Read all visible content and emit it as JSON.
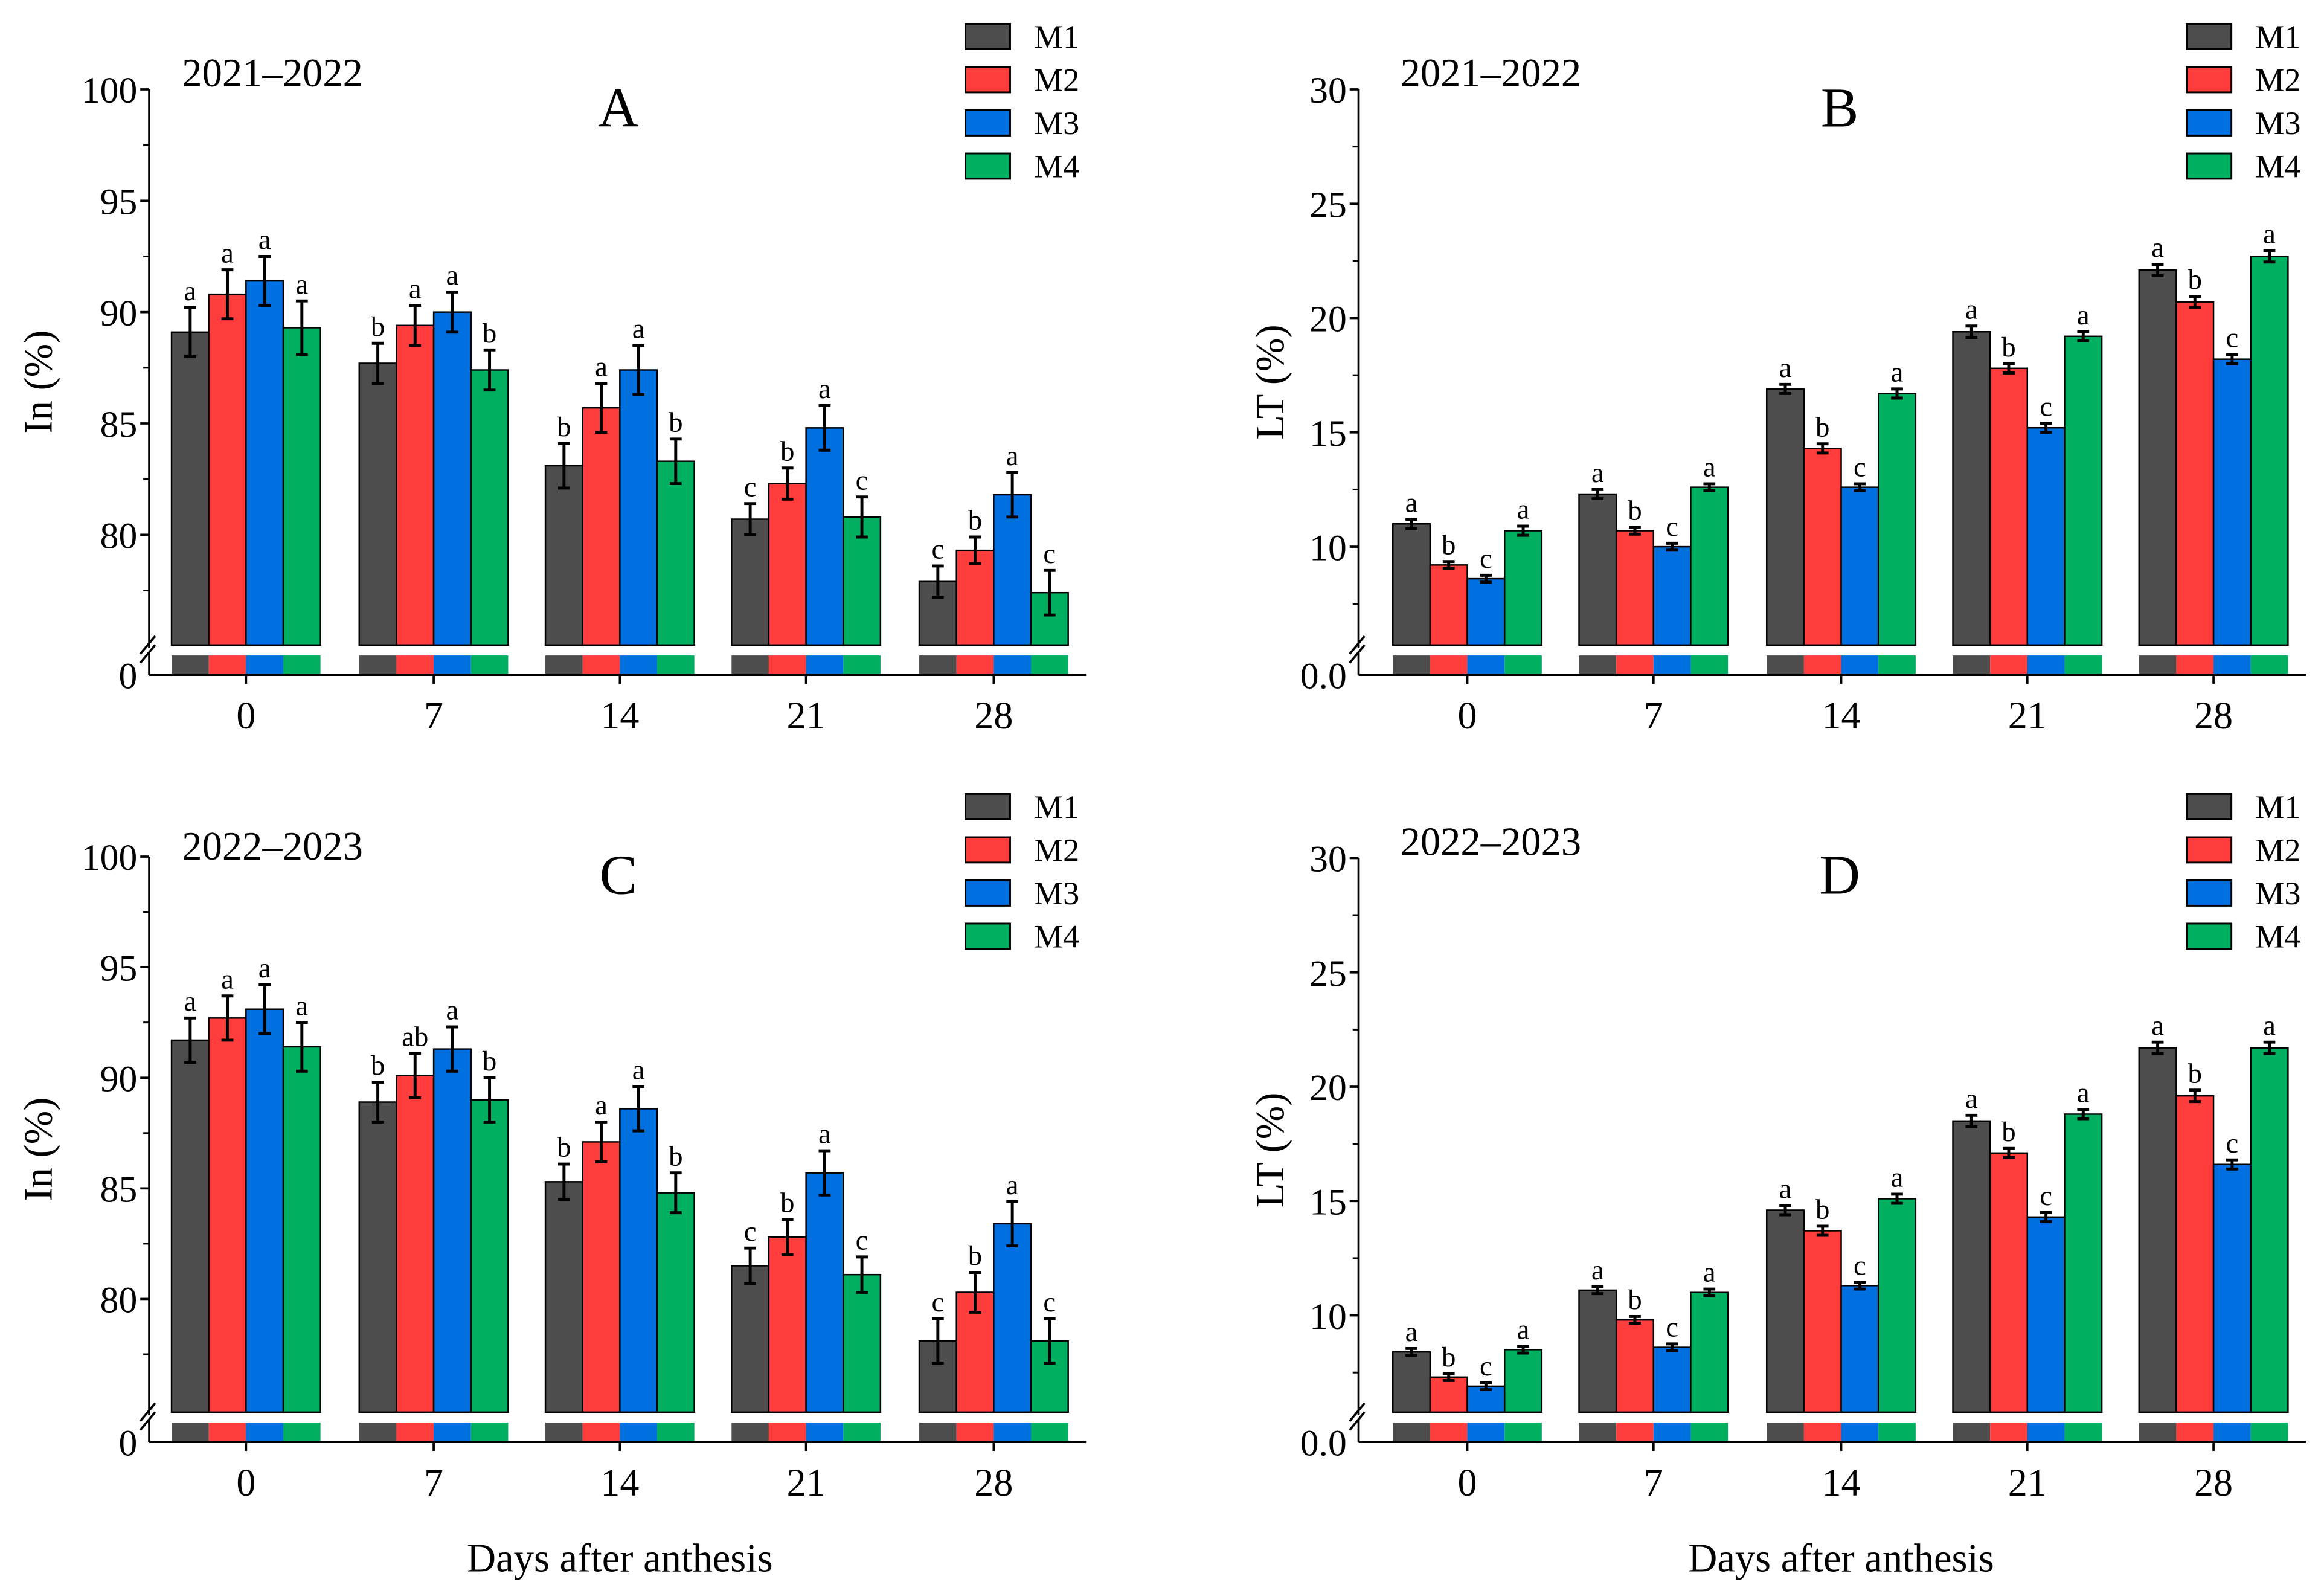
{
  "colors": {
    "M1": "#4d4d4d",
    "M2": "#ff3d3d",
    "M3": "#0070e0",
    "M4": "#00b060"
  },
  "chart_data": [
    {
      "type": "bar",
      "panel": "A",
      "period": "2021–2022",
      "xlabel": "",
      "ylabel": "In (%)",
      "categories": [
        "0",
        "7",
        "14",
        "21",
        "28"
      ],
      "ylim": [
        75,
        100
      ],
      "axis_break": true,
      "yticks": [
        "100",
        "95",
        "90",
        "85",
        "80"
      ],
      "ybottom_label": "0",
      "legend": [
        "M1",
        "M2",
        "M3",
        "M4"
      ],
      "legend_position": "top-right",
      "series": [
        {
          "name": "M1",
          "values": [
            89.1,
            87.7,
            83.1,
            80.7,
            77.9
          ],
          "errors": [
            1.1,
            0.9,
            1.0,
            0.7,
            0.7
          ],
          "letters": [
            "a",
            "b",
            "b",
            "c",
            "c"
          ]
        },
        {
          "name": "M2",
          "values": [
            90.8,
            89.4,
            85.7,
            82.3,
            79.3
          ],
          "errors": [
            1.1,
            0.9,
            1.1,
            0.7,
            0.6
          ],
          "letters": [
            "a",
            "a",
            "a",
            "b",
            "b"
          ]
        },
        {
          "name": "M3",
          "values": [
            91.4,
            90.0,
            87.4,
            84.8,
            81.8
          ],
          "errors": [
            1.1,
            0.9,
            1.1,
            1.0,
            1.0
          ],
          "letters": [
            "a",
            "a",
            "a",
            "a",
            "a"
          ]
        },
        {
          "name": "M4",
          "values": [
            89.3,
            87.4,
            83.3,
            80.8,
            77.4
          ],
          "errors": [
            1.2,
            0.9,
            1.0,
            0.9,
            1.0
          ],
          "letters": [
            "a",
            "b",
            "b",
            "c",
            "c"
          ]
        }
      ]
    },
    {
      "type": "bar",
      "panel": "B",
      "period": "2021–2022",
      "xlabel": "",
      "ylabel": "LT (%)",
      "categories": [
        "0",
        "7",
        "14",
        "21",
        "28"
      ],
      "ylim": [
        5,
        30
      ],
      "axis_break": true,
      "yticks": [
        "30",
        "25",
        "20",
        "15",
        "10"
      ],
      "ybottom_label": "0.0",
      "legend": [
        "M1",
        "M2",
        "M3",
        "M4"
      ],
      "legend_position": "top-right",
      "series": [
        {
          "name": "M1",
          "values": [
            11.0,
            12.3,
            16.9,
            19.4,
            22.1
          ],
          "errors": [
            0.2,
            0.2,
            0.2,
            0.25,
            0.25
          ],
          "letters": [
            "a",
            "a",
            "a",
            "a",
            "a"
          ]
        },
        {
          "name": "M2",
          "values": [
            9.2,
            10.7,
            14.3,
            17.8,
            20.7
          ],
          "errors": [
            0.15,
            0.15,
            0.2,
            0.2,
            0.25
          ],
          "letters": [
            "b",
            "b",
            "b",
            "b",
            "b"
          ]
        },
        {
          "name": "M3",
          "values": [
            8.6,
            10.0,
            12.6,
            15.2,
            18.2
          ],
          "errors": [
            0.15,
            0.15,
            0.15,
            0.2,
            0.2
          ],
          "letters": [
            "c",
            "c",
            "c",
            "c",
            "c"
          ]
        },
        {
          "name": "M4",
          "values": [
            10.7,
            12.6,
            16.7,
            19.2,
            22.7
          ],
          "errors": [
            0.2,
            0.15,
            0.2,
            0.2,
            0.25
          ],
          "letters": [
            "a",
            "a",
            "a",
            "a",
            "a"
          ]
        }
      ]
    },
    {
      "type": "bar",
      "panel": "C",
      "period": "2022–2023",
      "xlabel": "Days after anthesis",
      "ylabel": "In (%)",
      "categories": [
        "0",
        "7",
        "14",
        "21",
        "28"
      ],
      "ylim": [
        75,
        100
      ],
      "axis_break": true,
      "yticks": [
        "100",
        "95",
        "90",
        "85",
        "80"
      ],
      "ybottom_label": "0",
      "legend": [
        "M1",
        "M2",
        "M3",
        "M4"
      ],
      "legend_position": "top-right",
      "series": [
        {
          "name": "M1",
          "values": [
            91.7,
            88.9,
            85.3,
            81.5,
            78.1
          ],
          "errors": [
            1.0,
            0.9,
            0.8,
            0.8,
            1.0
          ],
          "letters": [
            "a",
            "b",
            "b",
            "c",
            "c"
          ]
        },
        {
          "name": "M2",
          "values": [
            92.7,
            90.1,
            87.1,
            82.8,
            80.3
          ],
          "errors": [
            1.0,
            1.0,
            0.9,
            0.8,
            0.9
          ],
          "letters": [
            "a",
            "ab",
            "a",
            "b",
            "b"
          ]
        },
        {
          "name": "M3",
          "values": [
            93.1,
            91.3,
            88.6,
            85.7,
            83.4
          ],
          "errors": [
            1.1,
            1.0,
            1.0,
            1.0,
            1.0
          ],
          "letters": [
            "a",
            "a",
            "a",
            "a",
            "a"
          ]
        },
        {
          "name": "M4",
          "values": [
            91.4,
            89.0,
            84.8,
            81.1,
            78.1
          ],
          "errors": [
            1.1,
            1.0,
            0.9,
            0.8,
            1.0
          ],
          "letters": [
            "a",
            "b",
            "b",
            "c",
            "c"
          ]
        }
      ]
    },
    {
      "type": "bar",
      "panel": "D",
      "period": "2022–2023",
      "xlabel": "Days after anthesis",
      "ylabel": "LT (%)",
      "categories": [
        "0",
        "7",
        "14",
        "21",
        "28"
      ],
      "ylim": [
        5,
        30
      ],
      "axis_break": true,
      "yticks": [
        "30",
        "25",
        "20",
        "15",
        "10"
      ],
      "ybottom_label": "0.0",
      "legend": [
        "M1",
        "M2",
        "M3",
        "M4"
      ],
      "legend_position": "top-right",
      "series": [
        {
          "name": "M1",
          "values": [
            8.4,
            11.1,
            14.6,
            18.5,
            21.7
          ],
          "errors": [
            0.15,
            0.15,
            0.2,
            0.25,
            0.25
          ],
          "letters": [
            "a",
            "a",
            "a",
            "a",
            "a"
          ]
        },
        {
          "name": "M2",
          "values": [
            7.3,
            9.8,
            13.7,
            17.1,
            19.6
          ],
          "errors": [
            0.15,
            0.15,
            0.2,
            0.2,
            0.25
          ],
          "letters": [
            "b",
            "b",
            "b",
            "b",
            "b"
          ]
        },
        {
          "name": "M3",
          "values": [
            6.9,
            8.6,
            11.3,
            14.3,
            16.6
          ],
          "errors": [
            0.15,
            0.15,
            0.15,
            0.2,
            0.2
          ],
          "letters": [
            "c",
            "c",
            "c",
            "c",
            "c"
          ]
        },
        {
          "name": "M4",
          "values": [
            8.5,
            11.0,
            15.1,
            18.8,
            21.7
          ],
          "errors": [
            0.15,
            0.15,
            0.2,
            0.2,
            0.25
          ],
          "letters": [
            "a",
            "a",
            "a",
            "a",
            "a"
          ]
        }
      ]
    }
  ]
}
